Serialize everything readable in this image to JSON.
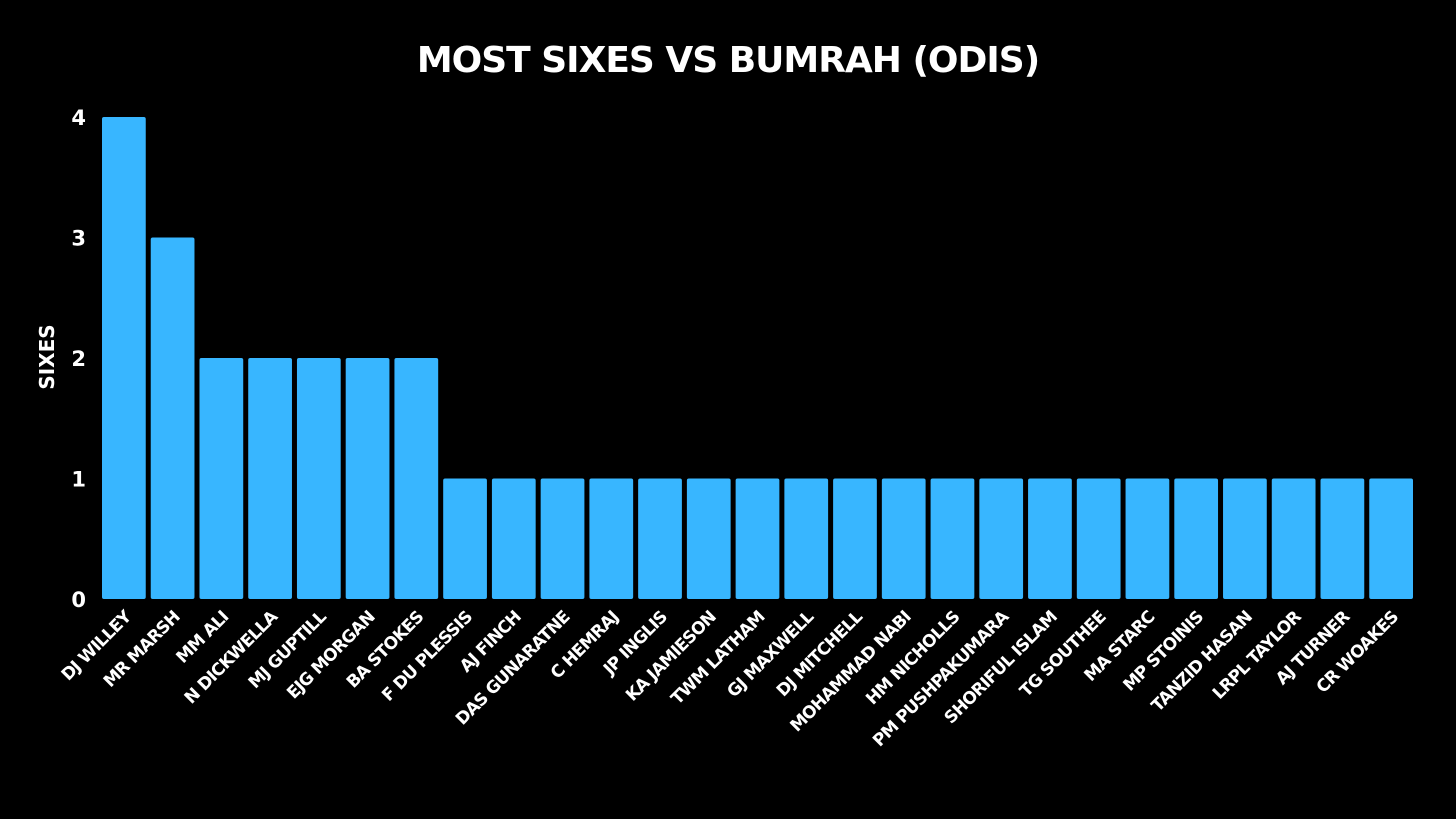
{
  "chart_data": {
    "type": "bar",
    "title": "Most Sixes vs Bumrah (ODIs)",
    "xlabel": "",
    "ylabel": "Sixes",
    "ylim": [
      0,
      4
    ],
    "yticks": [
      0,
      1,
      2,
      3,
      4
    ],
    "grid": false,
    "bar_color": "#38B6FF",
    "background": "#000000",
    "categories": [
      "DJ Willey",
      "MR Marsh",
      "MM Ali",
      "N Dickwella",
      "MJ Guptill",
      "EJG Morgan",
      "BA Stokes",
      "F du Plessis",
      "AJ Finch",
      "DAS Gunaratne",
      "C Hemraj",
      "JP Inglis",
      "KA Jamieson",
      "TWM Latham",
      "GJ Maxwell",
      "DJ Mitchell",
      "Mohammad Nabi",
      "HM Nicholls",
      "PM Pushpakumara",
      "Shoriful Islam",
      "TG Southee",
      "MA Starc",
      "MP Stoinis",
      "Tanzid Hasan",
      "LRPL Taylor",
      "AJ Turner",
      "CR Woakes"
    ],
    "values": [
      4,
      3,
      2,
      2,
      2,
      2,
      2,
      1,
      1,
      1,
      1,
      1,
      1,
      1,
      1,
      1,
      1,
      1,
      1,
      1,
      1,
      1,
      1,
      1,
      1,
      1,
      1
    ]
  }
}
